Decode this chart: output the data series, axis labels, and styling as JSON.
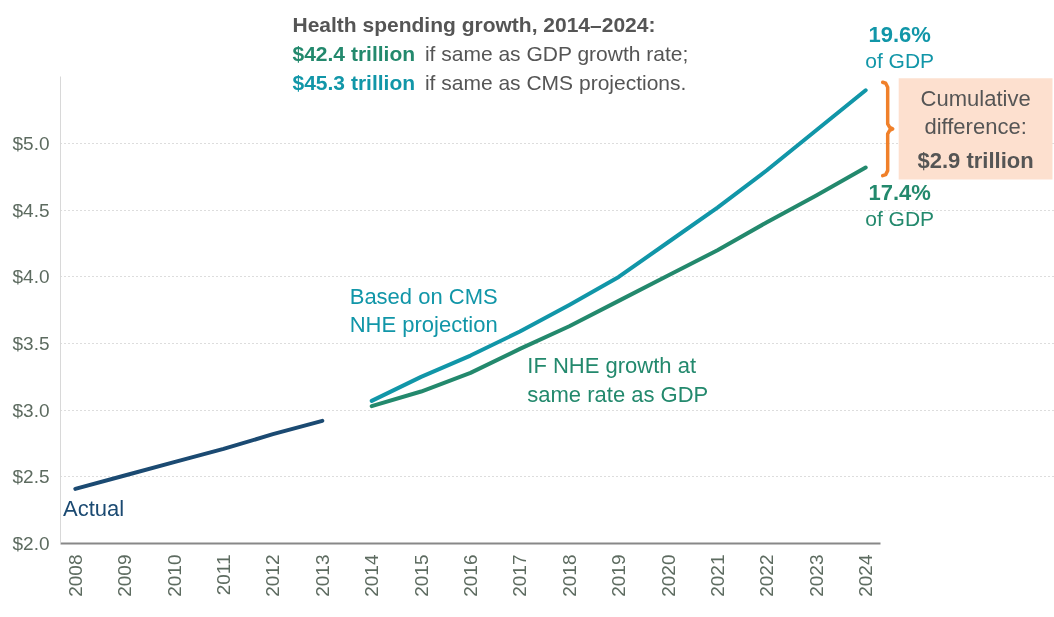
{
  "chart_data": {
    "type": "line",
    "x": [
      2008,
      2009,
      2010,
      2011,
      2012,
      2013,
      2014,
      2015,
      2016,
      2017,
      2018,
      2019,
      2020,
      2021,
      2022,
      2023,
      2024
    ],
    "series": [
      {
        "name": "Actual",
        "color": "#1b4a72",
        "values": [
          2.41,
          2.51,
          2.61,
          2.71,
          2.82,
          2.92,
          null,
          null,
          null,
          null,
          null,
          null,
          null,
          null,
          null,
          null,
          null
        ]
      },
      {
        "name": "Based on CMS NHE projection",
        "color": "#1196a8",
        "values": [
          null,
          null,
          null,
          null,
          null,
          null,
          3.07,
          3.25,
          3.41,
          3.59,
          3.79,
          4.0,
          4.26,
          4.52,
          4.8,
          5.1,
          5.4
        ]
      },
      {
        "name": "IF NHE growth at same rate as GDP",
        "color": "#23896d",
        "values": [
          null,
          null,
          null,
          null,
          null,
          null,
          3.03,
          3.14,
          3.28,
          3.46,
          3.63,
          3.82,
          4.01,
          4.2,
          4.41,
          4.61,
          4.82
        ]
      }
    ],
    "xlim": [
      2007.7,
      2024.3
    ],
    "xticks": [
      2008,
      2009,
      2010,
      2011,
      2012,
      2013,
      2014,
      2015,
      2016,
      2017,
      2018,
      2019,
      2020,
      2021,
      2022,
      2023,
      2024
    ],
    "yticks": [
      {
        "value": 2.0,
        "label": "$2.0"
      },
      {
        "value": 2.5,
        "label": "$2.5"
      },
      {
        "value": 3.0,
        "label": "$3.0"
      },
      {
        "value": 3.5,
        "label": "$3.5"
      },
      {
        "value": 4.0,
        "label": "$4.0"
      },
      {
        "value": 4.5,
        "label": "$4.5"
      },
      {
        "value": 5.0,
        "label": "$5.0"
      }
    ],
    "ylim": [
      2.0,
      5.5
    ],
    "grid": "y",
    "line_style": "solid",
    "marker": "none",
    "annotations": [
      "Health spending growth, 2014–2024:",
      "$42.4 trillion",
      "if same as GDP growth rate;",
      "$45.3 trillion",
      "if same as CMS projections.",
      {
        "text": "19.6% of GDP",
        "x": 2024,
        "y": 5.4
      },
      {
        "text": "17.4% of GDP",
        "x": 2024,
        "y": 4.82
      },
      "Cumulative difference:",
      "$2.9 trillion"
    ]
  }
}
